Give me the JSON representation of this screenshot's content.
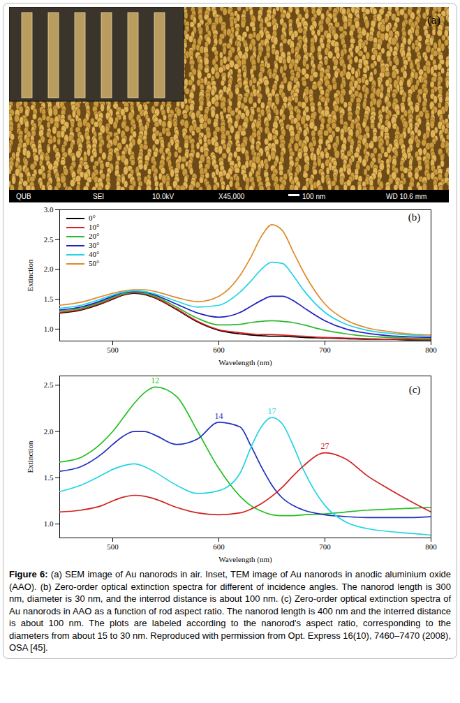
{
  "image_panel": {
    "label": "(a)",
    "info_bar": [
      "QUB",
      "SEI",
      "10.0kV",
      "X45,000",
      "100 nm",
      "WD 10.6 mm"
    ]
  },
  "chart_data": [
    {
      "type": "line",
      "xlabel": "Wavelength (nm)",
      "ylabel": "Extinction",
      "annotations": [
        {
          "text": "(b)",
          "x": 790,
          "y": 2.88
        }
      ],
      "x": [
        450,
        470,
        490,
        500,
        510,
        520,
        530,
        540,
        560,
        580,
        600,
        620,
        630,
        640,
        650,
        660,
        670,
        680,
        700,
        720,
        740,
        760,
        780,
        800
      ],
      "series": [
        {
          "name": "0°",
          "color": "#000000",
          "values": [
            1.27,
            1.32,
            1.43,
            1.5,
            1.57,
            1.6,
            1.58,
            1.52,
            1.33,
            1.12,
            0.98,
            0.92,
            0.9,
            0.89,
            0.88,
            0.88,
            0.87,
            0.86,
            0.85,
            0.84,
            0.83,
            0.83,
            0.82,
            0.82
          ]
        },
        {
          "name": "10°",
          "color": "#e02020",
          "values": [
            1.28,
            1.33,
            1.44,
            1.51,
            1.58,
            1.61,
            1.59,
            1.53,
            1.34,
            1.13,
            0.99,
            0.94,
            0.92,
            0.91,
            0.91,
            0.9,
            0.89,
            0.88,
            0.86,
            0.85,
            0.84,
            0.83,
            0.83,
            0.82
          ]
        },
        {
          "name": "20°",
          "color": "#2db82d",
          "values": [
            1.3,
            1.35,
            1.46,
            1.53,
            1.59,
            1.62,
            1.6,
            1.55,
            1.37,
            1.18,
            1.07,
            1.08,
            1.11,
            1.13,
            1.14,
            1.13,
            1.11,
            1.07,
            0.98,
            0.92,
            0.88,
            0.86,
            0.85,
            0.84
          ]
        },
        {
          "name": "30°",
          "color": "#2020c0",
          "values": [
            1.32,
            1.37,
            1.48,
            1.55,
            1.61,
            1.63,
            1.62,
            1.57,
            1.42,
            1.27,
            1.2,
            1.28,
            1.38,
            1.48,
            1.55,
            1.55,
            1.48,
            1.36,
            1.14,
            1.0,
            0.93,
            0.89,
            0.87,
            0.86
          ]
        },
        {
          "name": "40°",
          "color": "#22d4e4",
          "values": [
            1.35,
            1.4,
            1.51,
            1.57,
            1.62,
            1.64,
            1.63,
            1.59,
            1.47,
            1.37,
            1.4,
            1.62,
            1.8,
            2.0,
            2.12,
            2.1,
            1.9,
            1.65,
            1.28,
            1.08,
            0.98,
            0.93,
            0.9,
            0.88
          ]
        },
        {
          "name": "50°",
          "color": "#e08a2a",
          "values": [
            1.4,
            1.45,
            1.55,
            1.6,
            1.64,
            1.66,
            1.66,
            1.63,
            1.53,
            1.46,
            1.55,
            1.9,
            2.2,
            2.55,
            2.75,
            2.65,
            2.3,
            1.95,
            1.42,
            1.15,
            1.02,
            0.96,
            0.92,
            0.9
          ]
        }
      ],
      "xlim": [
        450,
        800
      ],
      "xticks": [
        500,
        600,
        700,
        800
      ],
      "ylim": [
        0.8,
        3.0
      ],
      "yticks": [
        {
          "value": 1,
          "label": "1.0"
        },
        {
          "value": 1.5,
          "label": "1.5"
        },
        {
          "value": 2,
          "label": "2.0"
        },
        {
          "value": 2.5,
          "label": "2.5"
        },
        {
          "value": 3,
          "label": "3.0"
        }
      ],
      "grid": false,
      "legend": "top-left"
    },
    {
      "type": "line",
      "xlabel": "Wavelength (nm)",
      "ylabel": "Extinction",
      "annotations": [
        {
          "text": "(c)",
          "x": 790,
          "y": 2.45
        }
      ],
      "x": [
        450,
        470,
        490,
        500,
        510,
        520,
        530,
        540,
        560,
        580,
        600,
        620,
        630,
        640,
        650,
        660,
        670,
        680,
        700,
        720,
        740,
        760,
        780,
        800
      ],
      "series": [
        {
          "name": "12",
          "color": "#22c022",
          "values": [
            1.67,
            1.72,
            1.88,
            2.0,
            2.15,
            2.3,
            2.42,
            2.48,
            2.38,
            2.0,
            1.6,
            1.3,
            1.2,
            1.14,
            1.1,
            1.09,
            1.09,
            1.1,
            1.11,
            1.13,
            1.15,
            1.16,
            1.17,
            1.18
          ]
        },
        {
          "name": "14",
          "color": "#1f2fbf",
          "values": [
            1.57,
            1.62,
            1.76,
            1.86,
            1.95,
            2.0,
            2.0,
            1.96,
            1.86,
            1.92,
            2.1,
            2.05,
            1.85,
            1.62,
            1.42,
            1.28,
            1.2,
            1.15,
            1.1,
            1.08,
            1.07,
            1.07,
            1.07,
            1.08
          ]
        },
        {
          "name": "17",
          "color": "#22d4e4",
          "values": [
            1.35,
            1.42,
            1.53,
            1.59,
            1.63,
            1.65,
            1.62,
            1.56,
            1.42,
            1.33,
            1.36,
            1.55,
            1.82,
            2.05,
            2.15,
            2.08,
            1.85,
            1.58,
            1.2,
            1.02,
            0.95,
            0.92,
            0.9,
            0.88
          ]
        },
        {
          "name": "27",
          "color": "#d02020",
          "values": [
            1.13,
            1.15,
            1.2,
            1.25,
            1.29,
            1.31,
            1.3,
            1.27,
            1.18,
            1.12,
            1.1,
            1.12,
            1.16,
            1.22,
            1.3,
            1.4,
            1.52,
            1.63,
            1.77,
            1.7,
            1.52,
            1.38,
            1.25,
            1.13
          ]
        }
      ],
      "xlim": [
        450,
        800
      ],
      "xticks": [
        500,
        600,
        700,
        800
      ],
      "ylim": [
        0.85,
        2.6
      ],
      "yticks": [
        {
          "value": 1,
          "label": "1.0"
        },
        {
          "value": 1.5,
          "label": "1.5"
        },
        {
          "value": 2,
          "label": "2.0"
        },
        {
          "value": 2.5,
          "label": "2.5"
        }
      ],
      "grid": false
    }
  ],
  "caption": {
    "label": "Figure 6:",
    "text": "(a) SEM image of Au nanorods in air. Inset, TEM image of Au nanorods in anodic aluminium oxide (AAO). (b) Zero-order optical extinction spectra for different of incidence angles. The nanorod length is 300 nm, diameter is 30 nm, and the interrod distance is about 100 nm. (c) Zero-order optical extinction spectra of Au nanorods in AAO as a function of rod aspect ratio. The nanorod length is 400 nm and the interred distance is about 100 nm. The plots are labeled according to the nanorod's aspect ratio, corresponding to the  diameters from about 15 to 30 nm. Reproduced with permission from Opt. Express 16(10), 7460–7470 (2008), OSA [45]."
  }
}
